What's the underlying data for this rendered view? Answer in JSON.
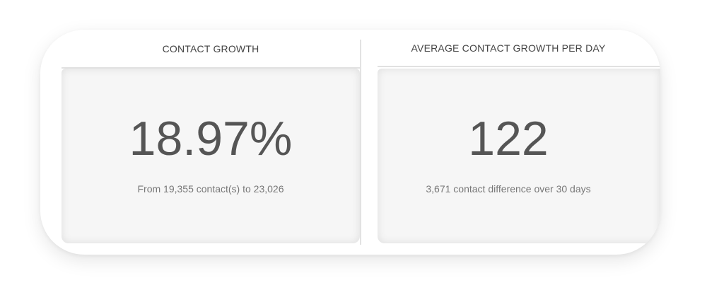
{
  "widgets": [
    {
      "title": "CONTACT GROWTH",
      "value": "18.97%",
      "description": "From 19,355 contact(s) to 23,026"
    },
    {
      "title": "AVERAGE CONTACT GROWTH PER DAY",
      "value": "122",
      "description": "3,671 contact difference over 30 days"
    }
  ],
  "colors": {
    "background": "#ffffff",
    "panel_body": "#f6f6f6",
    "value_text": "#555555",
    "header_text": "#444444",
    "sub_text": "#777777"
  }
}
